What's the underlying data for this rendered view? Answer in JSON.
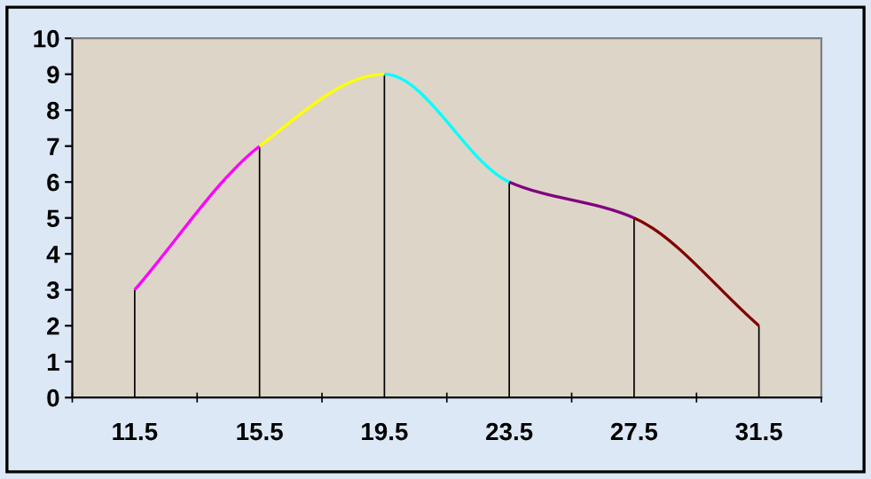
{
  "chart_data": {
    "type": "line",
    "categories": [
      "11.5",
      "15.5",
      "19.5",
      "23.5",
      "27.5",
      "31.5"
    ],
    "ylim": [
      0,
      10
    ],
    "yticks": [
      0,
      1,
      2,
      3,
      4,
      5,
      6,
      7,
      8,
      9,
      10
    ],
    "grid": false,
    "legend": false,
    "marker": "none",
    "line_style": "solid",
    "series": [
      {
        "type": "bar",
        "color": "#000000",
        "values": [
          3,
          7,
          9,
          6,
          5,
          2
        ]
      },
      {
        "color": "#ff00ff",
        "values": [
          3,
          7,
          null,
          null,
          null,
          null
        ]
      },
      {
        "color": "#ffff00",
        "values": [
          null,
          7,
          9,
          null,
          null,
          null
        ]
      },
      {
        "color": "#00ffff",
        "values": [
          null,
          null,
          9,
          6,
          null,
          null
        ]
      },
      {
        "color": "#800080",
        "values": [
          null,
          null,
          null,
          6,
          5,
          null
        ]
      },
      {
        "color": "#800000",
        "values": [
          null,
          null,
          null,
          null,
          5,
          2
        ]
      }
    ]
  }
}
